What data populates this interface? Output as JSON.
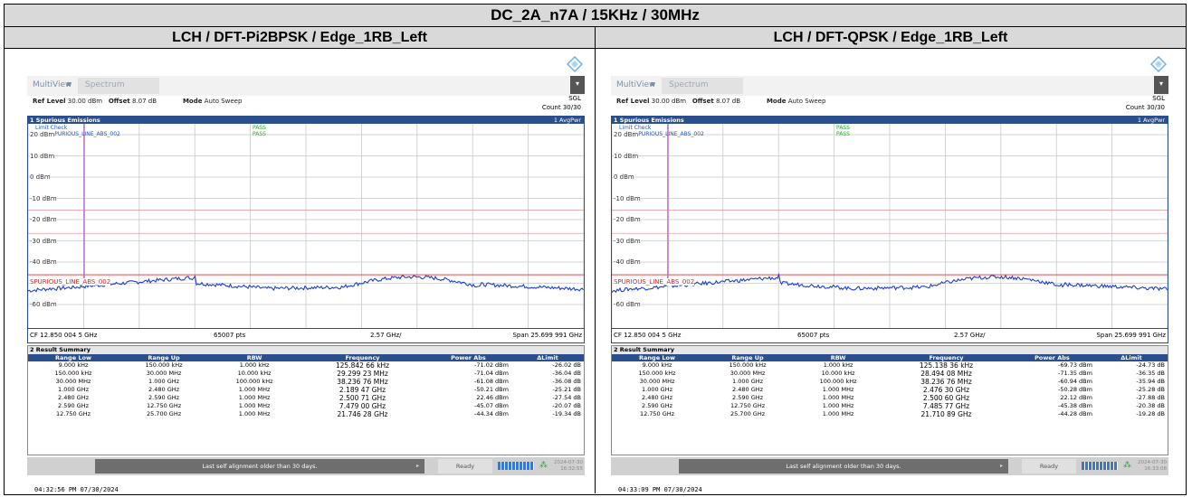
{
  "title": "DC_2A_n7A / 15KHz / 30MHz",
  "panels": [
    {
      "caption": "LCH / DFT-Pi2BPSK / Edge_1RB_Left",
      "tab_multiview": "MultiView",
      "tab_spectrum": "Spectrum",
      "ref_level_label": "Ref Level",
      "ref_level_value": "30.00 dBm",
      "offset_label": "Offset",
      "offset_value": "8.07 dB",
      "mode_label": "Mode",
      "mode_value": "Auto Sweep",
      "sgl": "SGL",
      "count": "Count 30/30",
      "diagram_title": "1 Spurious Emissions",
      "avg": "1 AvgPwr",
      "limit_check": "Limit Check",
      "limit_line": "Line _SPURIOUS_LINE_ABS_002",
      "pass1": "PASS",
      "pass2": "PASS",
      "y_labels": [
        "20 dBm",
        "10 dBm",
        "0 dBm",
        "-10 dBm",
        "-20 dBm",
        "-30 dBm",
        "-40 dBm",
        "-50 dBm",
        "-60 dBm"
      ],
      "spurious_label": "SPURIOUS_LINE_ABS_002",
      "cf": "CF 12.850 004 5 GHz",
      "pts": "65007 pts",
      "div": "2.57 GHz/",
      "span": "Span 25.699 991 GHz",
      "result_title": "2 Result Summary",
      "columns": [
        "Range Low",
        "Range Up",
        "RBW",
        "Frequency",
        "Power Abs",
        "ΔLimit"
      ],
      "rows": [
        [
          "9.000 kHz",
          "150.000 kHz",
          "1.000 kHz",
          "125.842 66 kHz",
          "-71.02 dBm",
          "-26.02 dB"
        ],
        [
          "150.000 kHz",
          "30.000 MHz",
          "10.000 kHz",
          "29.299 23 MHz",
          "-71.04 dBm",
          "-36.04 dB"
        ],
        [
          "30.000 MHz",
          "1.000 GHz",
          "100.000 kHz",
          "38.236 76 MHz",
          "-61.08 dBm",
          "-36.08 dB"
        ],
        [
          "1.000 GHz",
          "2.480 GHz",
          "1.000 MHz",
          "2.189 47 GHz",
          "-50.21 dBm",
          "-25.21 dB"
        ],
        [
          "2.480 GHz",
          "2.590 GHz",
          "1.000 MHz",
          "2.500 71 GHz",
          "22.46 dBm",
          "-27.54 dB"
        ],
        [
          "2.590 GHz",
          "12.750 GHz",
          "1.000 MHz",
          "7.479 00 GHz",
          "-45.07 dBm",
          "-20.07 dB"
        ],
        [
          "12.750 GHz",
          "25.700 GHz",
          "1.000 MHz",
          "21.746 28 GHz",
          "-44.34 dBm",
          "-19.34 dB"
        ]
      ],
      "status_msg": "Last self alignment older than 30 days.",
      "ready": "Ready",
      "sb_date": "2024-07-30",
      "sb_time": "16:32:55",
      "footer": "04:32:56 PM 07/30/2024",
      "trace_color": "#1f3fd0"
    },
    {
      "caption": "LCH / DFT-QPSK / Edge_1RB_Left",
      "tab_multiview": "MultiView",
      "tab_spectrum": "Spectrum",
      "ref_level_label": "Ref Level",
      "ref_level_value": "30.00 dBm",
      "offset_label": "Offset",
      "offset_value": "8.07 dB",
      "mode_label": "Mode",
      "mode_value": "Auto Sweep",
      "sgl": "SGL",
      "count": "Count 30/30",
      "diagram_title": "1 Spurious Emissions",
      "avg": "1 AvgPwr",
      "limit_check": "Limit Check",
      "limit_line": "Line _SPURIOUS_LINE_ABS_002",
      "pass1": "PASS",
      "pass2": "PASS",
      "y_labels": [
        "20 dBm",
        "10 dBm",
        "0 dBm",
        "-10 dBm",
        "-20 dBm",
        "-30 dBm",
        "-40 dBm",
        "-50 dBm",
        "-60 dBm"
      ],
      "spurious_label": "SPURIOUS_LINE_ABS_002",
      "cf": "CF 12.850 004 5 GHz",
      "pts": "65007 pts",
      "div": "2.57 GHz/",
      "span": "Span 25.699 991 GHz",
      "result_title": "2 Result Summary",
      "columns": [
        "Range Low",
        "Range Up",
        "RBW",
        "Frequency",
        "Power Abs",
        "ΔLimit"
      ],
      "rows": [
        [
          "9.000 kHz",
          "150.000 kHz",
          "1.000 kHz",
          "125.138 36 kHz",
          "-69.73 dBm",
          "-24.73 dB"
        ],
        [
          "150.000 kHz",
          "30.000 MHz",
          "10.000 kHz",
          "28.494 08 MHz",
          "-71.35 dBm",
          "-36.35 dB"
        ],
        [
          "30.000 MHz",
          "1.000 GHz",
          "100.000 kHz",
          "38.236 76 MHz",
          "-60.94 dBm",
          "-35.94 dB"
        ],
        [
          "1.000 GHz",
          "2.480 GHz",
          "1.000 MHz",
          "2.476 30 GHz",
          "-50.28 dBm",
          "-25.28 dB"
        ],
        [
          "2.480 GHz",
          "2.590 GHz",
          "1.000 MHz",
          "2.500 60 GHz",
          "22.12 dBm",
          "-27.88 dB"
        ],
        [
          "2.590 GHz",
          "12.750 GHz",
          "1.000 MHz",
          "7.485 77 GHz",
          "-45.38 dBm",
          "-20.38 dB"
        ],
        [
          "12.750 GHz",
          "25.700 GHz",
          "1.000 MHz",
          "21.710 89 GHz",
          "-44.28 dBm",
          "-19.28 dB"
        ]
      ],
      "status_msg": "Last self alignment older than 30 days.",
      "ready": "Ready",
      "sb_date": "2024-07-30",
      "sb_time": "16:33:08",
      "footer": "04:33:09 PM 07/30/2024",
      "trace_color": "#1f3fd0"
    }
  ]
}
